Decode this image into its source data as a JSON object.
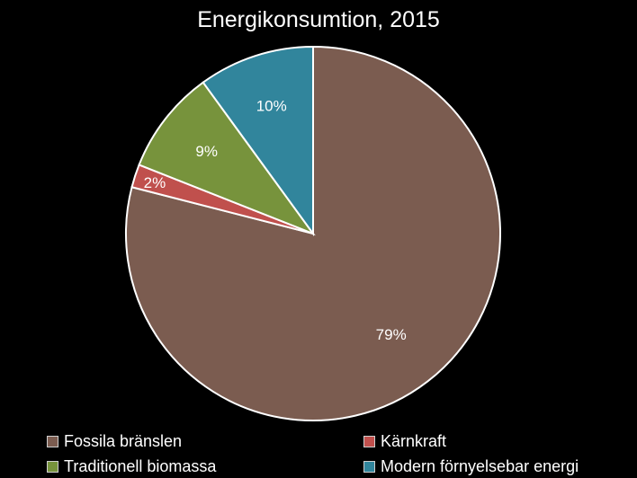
{
  "chart_data": {
    "type": "pie",
    "title": "Energikonsumtion, 2015",
    "slices": [
      {
        "name": "Fossila bränslen",
        "value": 79,
        "label": "79%",
        "color": "#7b5c50"
      },
      {
        "name": "Kärnkraft",
        "value": 2,
        "label": "2%",
        "color": "#c0504d"
      },
      {
        "name": "Traditionell biomassa",
        "value": 9,
        "label": "9%",
        "color": "#77933c"
      },
      {
        "name": "Modern förnyelsebar energi",
        "value": 10,
        "label": "10%",
        "color": "#31859c"
      }
    ],
    "legend_position": "bottom"
  }
}
